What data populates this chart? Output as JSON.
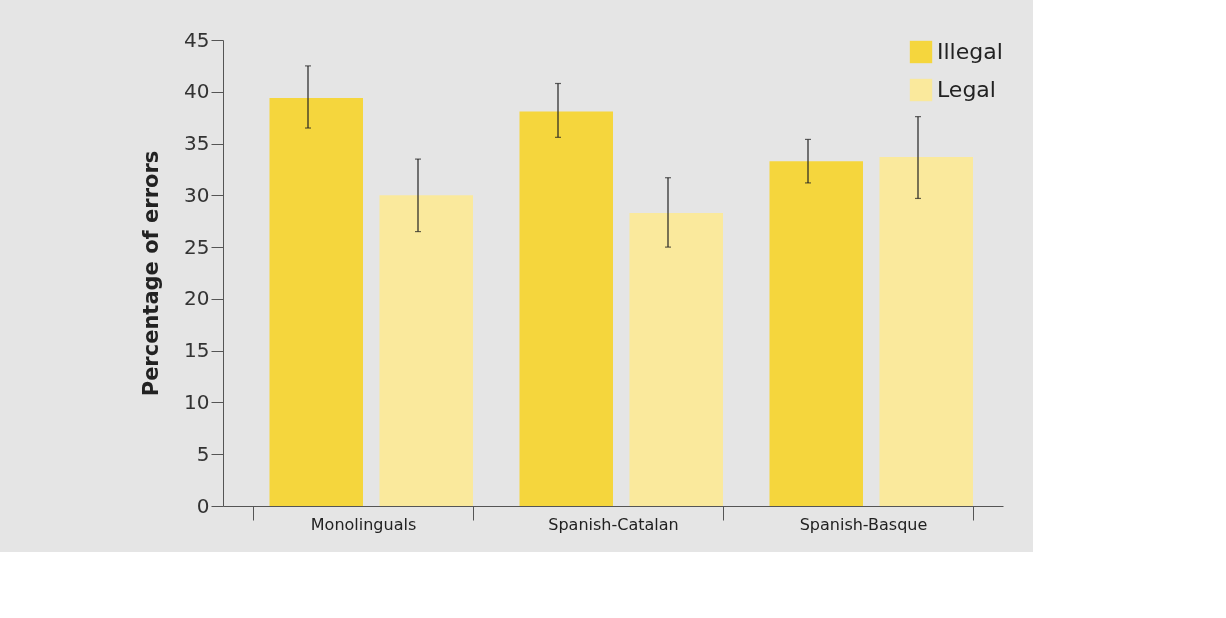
{
  "chart_data": {
    "type": "bar",
    "ylabel": "Percentage of errors",
    "categories": [
      "Monolinguals",
      "Spanish-Catalan",
      "Spanish-Basque"
    ],
    "series": [
      {
        "name": "Illegal",
        "color": "#f5d63d",
        "values": [
          39.4,
          38.1,
          33.3
        ],
        "errors": [
          [
            36.5,
            42.5
          ],
          [
            35.6,
            40.8
          ],
          [
            31.2,
            35.4
          ]
        ]
      },
      {
        "name": "Legal",
        "color": "#fae99c",
        "values": [
          30.0,
          28.3,
          33.7
        ],
        "errors": [
          [
            26.5,
            33.5
          ],
          [
            25.0,
            31.7
          ],
          [
            29.7,
            37.6
          ]
        ]
      }
    ],
    "ylim": [
      0,
      45
    ],
    "yticks": [
      0,
      5,
      10,
      15,
      20,
      25,
      30,
      35,
      40,
      45
    ],
    "grid": false,
    "legend": "top right"
  }
}
